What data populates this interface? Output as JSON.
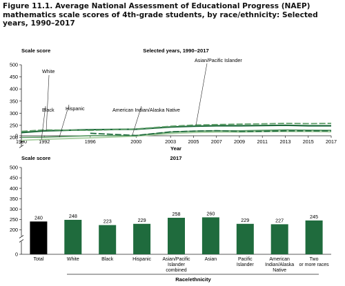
{
  "figure_title": "Figure 11.1. Average National Assessment of Educational Progress (NAEP) mathematics scale scores of 4th-grade students, by race/ethnicity: Selected years, 1990–2017",
  "colors": {
    "white": "#1f6b3d",
    "black": "#a9cfa2",
    "hispanic": "#5e9e68",
    "asian": "#5e9e68",
    "american_indian": "#1f6b3d",
    "bar_total": "#000000",
    "bar_other": "#1f6b3d"
  },
  "chart_data": [
    {
      "type": "line",
      "subtitle": "Selected years, 1990–2017",
      "ylabel": "Scale score",
      "xlabel": "Year",
      "ylim": [
        0,
        500
      ],
      "yticks": [
        "0",
        "200",
        "250",
        "300",
        "350",
        "400",
        "450",
        "500"
      ],
      "xticks": [
        "1990",
        "1992",
        "1996",
        "2000",
        "2003",
        "2005",
        "2007",
        "2009",
        "2011",
        "2013",
        "2015",
        "2017"
      ],
      "axis_break": "y between 0 and 200",
      "series": [
        {
          "name": "White",
          "key": "white",
          "dash": false,
          "x": [
            1990,
            1992,
            1996,
            2000,
            2003,
            2005,
            2007,
            2009,
            2011,
            2013,
            2015,
            2017
          ],
          "values": [
            220,
            227,
            232,
            234,
            243,
            246,
            248,
            248,
            249,
            250,
            248,
            248
          ]
        },
        {
          "name": "Black",
          "key": "black",
          "dash": false,
          "x": [
            1990,
            1992,
            1996,
            2000,
            2003,
            2005,
            2007,
            2009,
            2011,
            2013,
            2015,
            2017
          ],
          "values": [
            188,
            192,
            198,
            205,
            216,
            220,
            222,
            222,
            224,
            224,
            224,
            223
          ]
        },
        {
          "name": "Hispanic",
          "key": "hispanic",
          "dash": false,
          "x": [
            1990,
            1992,
            1996,
            2000,
            2003,
            2005,
            2007,
            2009,
            2011,
            2013,
            2015,
            2017
          ],
          "values": [
            200,
            201,
            207,
            208,
            222,
            226,
            227,
            227,
            229,
            231,
            230,
            229
          ]
        },
        {
          "name": "Asian/Pacific Islander",
          "key": "asian",
          "dash": true,
          "x": [
            1990,
            1992,
            1996,
            2000,
            2003,
            2005,
            2007,
            2009,
            2011,
            2013,
            2015,
            2017
          ],
          "values": [
            225,
            231,
            229,
            235,
            246,
            251,
            253,
            255,
            256,
            258,
            257,
            258
          ]
        },
        {
          "name": "American Indian/Alaska Native",
          "key": "american_indian",
          "dash": true,
          "x": [
            1996,
            2000,
            2003,
            2005,
            2007,
            2009,
            2011,
            2013,
            2015,
            2017
          ],
          "values": [
            217,
            208,
            223,
            226,
            228,
            225,
            225,
            227,
            227,
            227
          ]
        }
      ]
    },
    {
      "type": "bar",
      "subtitle": "2017",
      "ylabel": "Scale score",
      "xlabel": "Race/ethnicity",
      "ylim": [
        0,
        500
      ],
      "yticks": [
        "0",
        "200",
        "250",
        "300",
        "350",
        "400",
        "450",
        "500"
      ],
      "axis_break": "y between 0 and 200",
      "categories": [
        "Total",
        "White",
        "Black",
        "Hispanic",
        "Asian/Pacific Islander combined",
        "Asian",
        "Pacific Islander",
        "American Indian/Alaska Native",
        "Two or more races"
      ],
      "category_lines": [
        [
          "Total"
        ],
        [
          "White"
        ],
        [
          "Black"
        ],
        [
          "Hispanic"
        ],
        [
          "Asian/Pacific",
          "Islander",
          "combined"
        ],
        [
          "Asian"
        ],
        [
          "Pacific",
          "Islander"
        ],
        [
          "American",
          "Indian/Alaska",
          "Native"
        ],
        [
          "Two",
          "or more races"
        ]
      ],
      "values": [
        240,
        248,
        223,
        229,
        258,
        260,
        229,
        227,
        245
      ],
      "value_labels": [
        "240",
        "248",
        "223",
        "229",
        "258",
        "260",
        "229",
        "227",
        "245"
      ]
    }
  ]
}
